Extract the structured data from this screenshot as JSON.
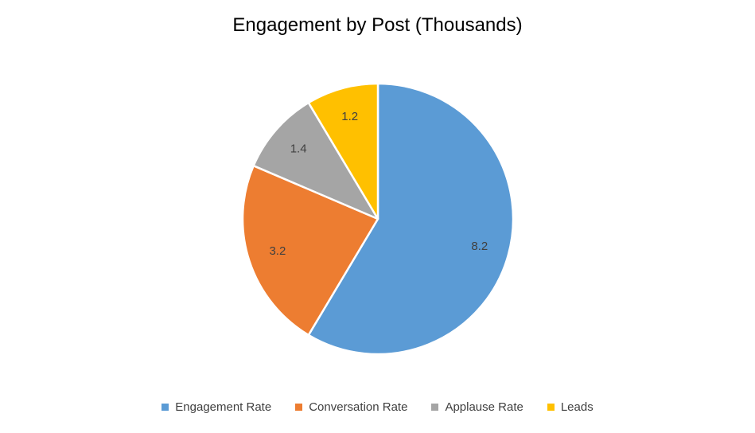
{
  "chart_data": {
    "type": "pie",
    "title": "Engagement by Post (Thousands)",
    "categories": [
      "Engagement Rate",
      "Conversation Rate",
      "Applause Rate",
      "Leads"
    ],
    "values": [
      8.2,
      3.2,
      1.4,
      1.2
    ],
    "data_labels": [
      "8.2",
      "3.2",
      "1.4",
      "1.2"
    ],
    "colors": [
      "#5B9BD5",
      "#ED7D31",
      "#A5A5A5",
      "#FFC000"
    ],
    "legend_position": "bottom"
  }
}
